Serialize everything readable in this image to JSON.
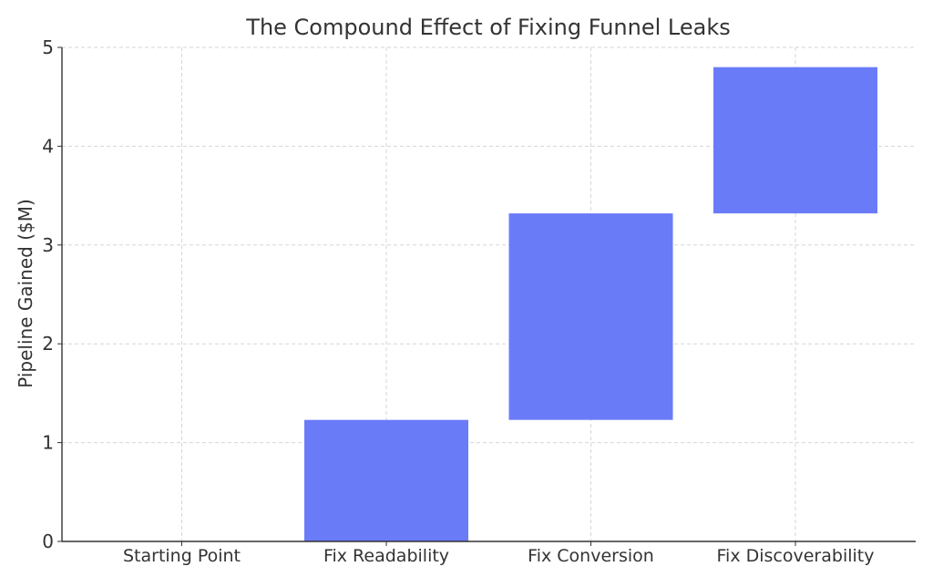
{
  "chart_data": {
    "type": "bar",
    "subtype": "waterfall",
    "title": "The Compound Effect of Fixing Funnel Leaks",
    "xlabel": "",
    "ylabel": "Pipeline Gained ($M)",
    "categories": [
      "Starting Point",
      "Fix Readability",
      "Fix Conversion",
      "Fix Discoverability"
    ],
    "bars": [
      {
        "category": "Starting Point",
        "bottom": 0,
        "top": 0
      },
      {
        "category": "Fix Readability",
        "bottom": 0,
        "top": 1.23
      },
      {
        "category": "Fix Conversion",
        "bottom": 1.23,
        "top": 3.32
      },
      {
        "category": "Fix Discoverability",
        "bottom": 3.32,
        "top": 4.8
      }
    ],
    "increments": [
      0,
      1.23,
      2.09,
      1.48
    ],
    "ylim": [
      0,
      5
    ],
    "yticks": [
      0,
      1,
      2,
      3,
      4,
      5
    ],
    "grid": true,
    "legend": "none",
    "colors": {
      "bar": "#6a7bf8",
      "grid": "#d6d6d6",
      "axis": "#333333",
      "text": "#333333"
    }
  }
}
